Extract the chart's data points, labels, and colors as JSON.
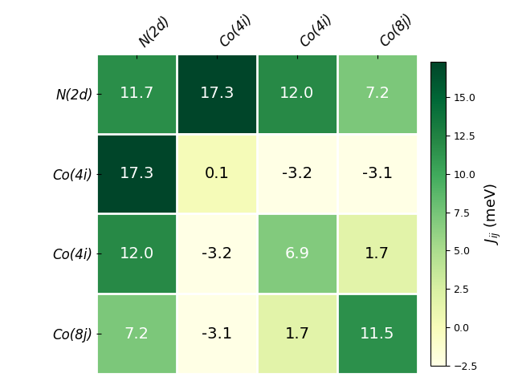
{
  "labels": [
    "N(2d)",
    "Co(4i)",
    "Co(4i)",
    "Co(8j)"
  ],
  "matrix": [
    [
      11.7,
      17.3,
      12.0,
      7.2
    ],
    [
      17.3,
      0.1,
      -3.2,
      -3.1
    ],
    [
      12.0,
      -3.2,
      6.9,
      1.7
    ],
    [
      7.2,
      -3.1,
      1.7,
      11.5
    ]
  ],
  "vmin": -2.5,
  "vmax": 17.3,
  "cbar_label": "$J_{ij}$ (meV)",
  "cbar_ticks": [
    -2.5,
    0.0,
    2.5,
    5.0,
    7.5,
    10.0,
    12.5,
    15.0
  ],
  "cmap": "YlGn",
  "figsize": [
    6.4,
    4.8
  ],
  "dpi": 100,
  "annotation_fontsize": 14,
  "label_fontsize": 12,
  "cbar_fontsize": 13,
  "white_text_threshold": 0.45
}
